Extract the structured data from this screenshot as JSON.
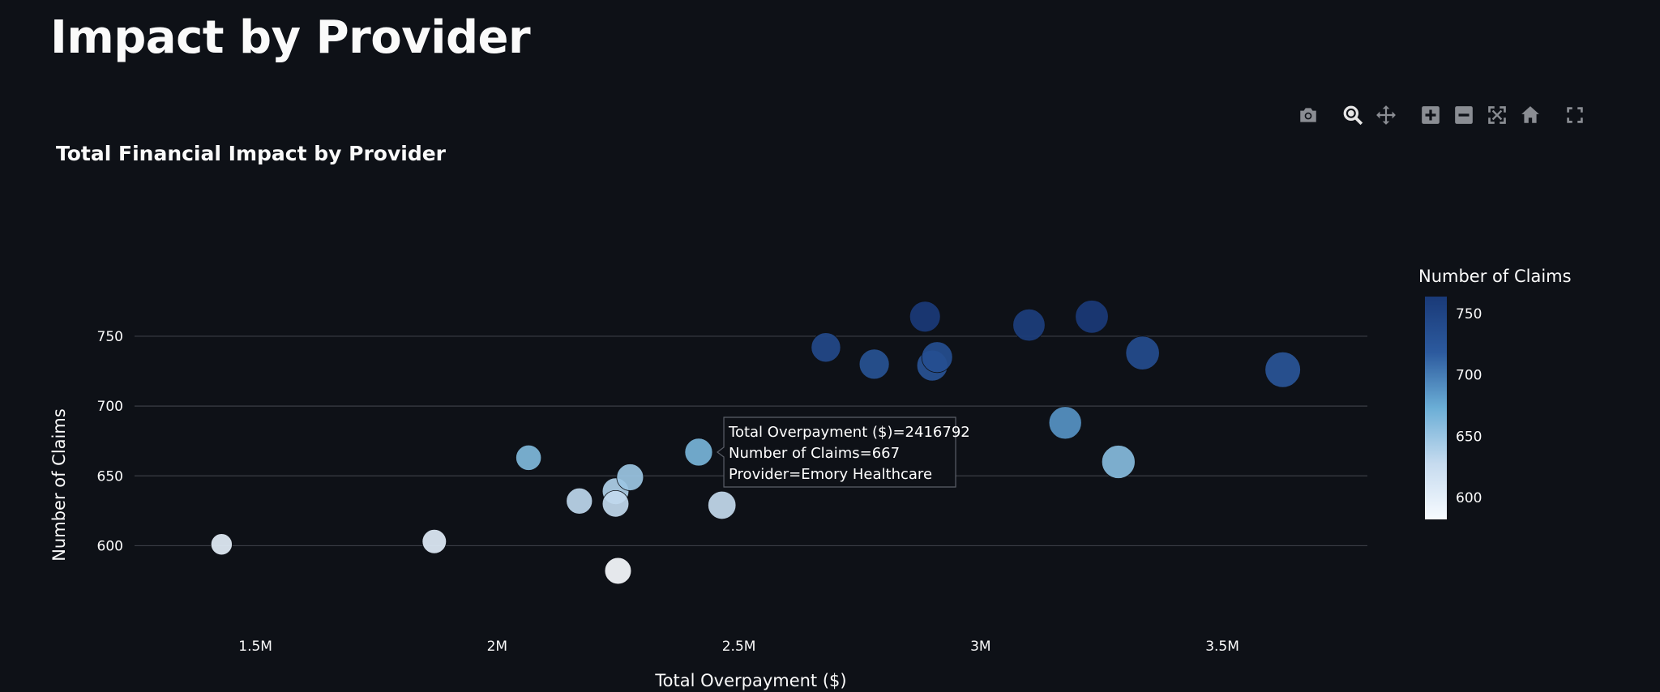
{
  "page": {
    "title": "Impact by Provider"
  },
  "modebar": {
    "buttons": [
      {
        "name": "download-plot-icon",
        "icon": "camera"
      },
      {
        "name": "zoom-icon",
        "icon": "magnifier"
      },
      {
        "name": "pan-icon",
        "icon": "move-arrows"
      },
      {
        "name": "zoom-in-icon",
        "icon": "plus-square"
      },
      {
        "name": "zoom-out-icon",
        "icon": "minus-square"
      },
      {
        "name": "autoscale-icon",
        "icon": "autoscale"
      },
      {
        "name": "reset-axes-icon",
        "icon": "home"
      },
      {
        "name": "fullscreen-icon",
        "icon": "fullscreen"
      }
    ]
  },
  "chart_data": {
    "type": "scatter",
    "title": "Total Financial Impact by Provider",
    "xlabel": "Total Overpayment ($)",
    "ylabel": "Number of Claims",
    "xlim": [
      1250000,
      3800000
    ],
    "ylim": [
      555,
      790
    ],
    "x_ticks": [
      1500000,
      2000000,
      2500000,
      3000000,
      3500000
    ],
    "x_tick_labels": [
      "1.5M",
      "2M",
      "2.5M",
      "3M",
      "3.5M"
    ],
    "y_ticks": [
      600,
      650,
      700,
      750
    ],
    "y_tick_labels": [
      "600",
      "650",
      "700",
      "750"
    ],
    "grid": true,
    "colorbar": {
      "title": "Number of Claims",
      "range": [
        582,
        764
      ],
      "ticks": [
        600,
        650,
        700,
        750
      ],
      "tick_labels": [
        "600",
        "650",
        "700",
        "750"
      ],
      "colors": [
        "#f7fbff",
        "#c6dbef",
        "#6baed6",
        "#2c5a9e",
        "#1a3a78"
      ]
    },
    "x": [
      1430000,
      1870000,
      2065000,
      2170000,
      2245000,
      2245000,
      2250000,
      2275000,
      2416792,
      2465000,
      2680000,
      2780000,
      2885000,
      2900000,
      2910000,
      3100000,
      3175000,
      3230000,
      3285000,
      3335000,
      3625000
    ],
    "y": [
      601,
      603,
      663,
      632,
      639,
      630,
      582,
      649,
      667,
      629,
      742,
      730,
      764,
      729,
      735,
      758,
      688,
      764,
      660,
      738,
      726
    ],
    "hover": {
      "point_index": 8,
      "lines": [
        "Total Overpayment ($)=2416792",
        "Number of Claims=667",
        "Provider=Emory Healthcare"
      ]
    }
  }
}
